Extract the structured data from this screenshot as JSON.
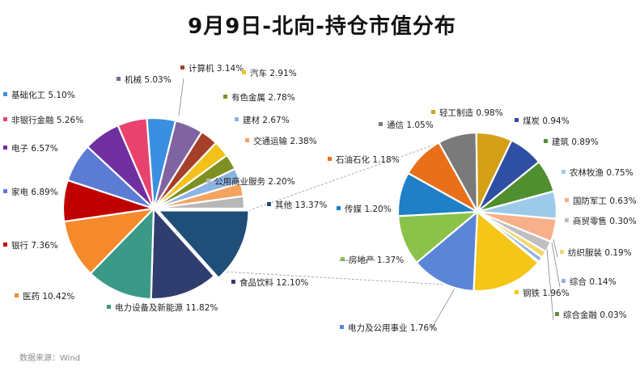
{
  "chart_data": {
    "type": "pie",
    "title": "9月9日-北向-持仓市值分布",
    "source": "数据来源：Wind",
    "main": [
      {
        "name": "其他",
        "value": "13.37%",
        "v": 13.37,
        "color": "#1f4e79"
      },
      {
        "name": "食品饮料",
        "value": "12.10%",
        "v": 12.1,
        "color": "#2f3e6e"
      },
      {
        "name": "电力设备及新能源",
        "value": "11.82%",
        "v": 11.82,
        "color": "#3a9a87"
      },
      {
        "name": "医药",
        "value": "10.42%",
        "v": 10.42,
        "color": "#f58a2c"
      },
      {
        "name": "银行",
        "value": "7.36%",
        "v": 7.36,
        "color": "#c00000"
      },
      {
        "name": "家电",
        "value": "6.89%",
        "v": 6.89,
        "color": "#5b7bd5"
      },
      {
        "name": "电子",
        "value": "6.57%",
        "v": 6.57,
        "color": "#7030a0"
      },
      {
        "name": "非银行金融",
        "value": "5.26%",
        "v": 5.26,
        "color": "#e8436e"
      },
      {
        "name": "基础化工",
        "value": "5.10%",
        "v": 5.1,
        "color": "#3b8fe0"
      },
      {
        "name": "机械",
        "value": "5.03%",
        "v": 5.03,
        "color": "#8064a2"
      },
      {
        "name": "计算机",
        "value": "3.14%",
        "v": 3.14,
        "color": "#a5402a"
      },
      {
        "name": "汽车",
        "value": "2.91%",
        "v": 2.91,
        "color": "#f2c21b"
      },
      {
        "name": "有色金属",
        "value": "2.78%",
        "v": 2.78,
        "color": "#7f8f22"
      },
      {
        "name": "建材",
        "value": "2.67%",
        "v": 2.67,
        "color": "#8db4e2"
      },
      {
        "name": "交通运输",
        "value": "2.38%",
        "v": 2.38,
        "color": "#f4a460"
      },
      {
        "name": "公用商业服务",
        "value": "2.20%",
        "v": 2.2,
        "color": "#b7b7b7"
      }
    ],
    "detail": [
      {
        "name": "通信",
        "value": "1.05%",
        "v": 1.05,
        "color": "#7a7a7a"
      },
      {
        "name": "轻工制造",
        "value": "0.98%",
        "v": 0.98,
        "color": "#d4a017"
      },
      {
        "name": "煤炭",
        "value": "0.94%",
        "v": 0.94,
        "color": "#2e4fa3"
      },
      {
        "name": "建筑",
        "value": "0.89%",
        "v": 0.89,
        "color": "#4f8f2f"
      },
      {
        "name": "农林牧渔",
        "value": "0.75%",
        "v": 0.75,
        "color": "#9ecae9"
      },
      {
        "name": "国防军工",
        "value": "0.63%",
        "v": 0.63,
        "color": "#f7b08a"
      },
      {
        "name": "商贸零售",
        "value": "0.30%",
        "v": 0.3,
        "color": "#bfbfbf"
      },
      {
        "name": "纺织服装",
        "value": "0.19%",
        "v": 0.19,
        "color": "#f5d76e"
      },
      {
        "name": "综合",
        "value": "0.14%",
        "v": 0.14,
        "color": "#8fb3de"
      },
      {
        "name": "综合金融",
        "value": "0.03%",
        "v": 0.03,
        "color": "#5b8e3e"
      },
      {
        "name": "钢铁",
        "value": "1.96%",
        "v": 1.96,
        "color": "#f5c518"
      },
      {
        "name": "电力及公用事业",
        "value": "1.76%",
        "v": 1.76,
        "color": "#5b85d6"
      },
      {
        "name": "房地产",
        "value": "1.37%",
        "v": 1.37,
        "color": "#8bc34a"
      },
      {
        "name": "传媒",
        "value": "1.20%",
        "v": 1.2,
        "color": "#1f7fc7"
      },
      {
        "name": "石油石化",
        "value": "1.18%",
        "v": 1.18,
        "color": "#e8701a"
      }
    ]
  }
}
